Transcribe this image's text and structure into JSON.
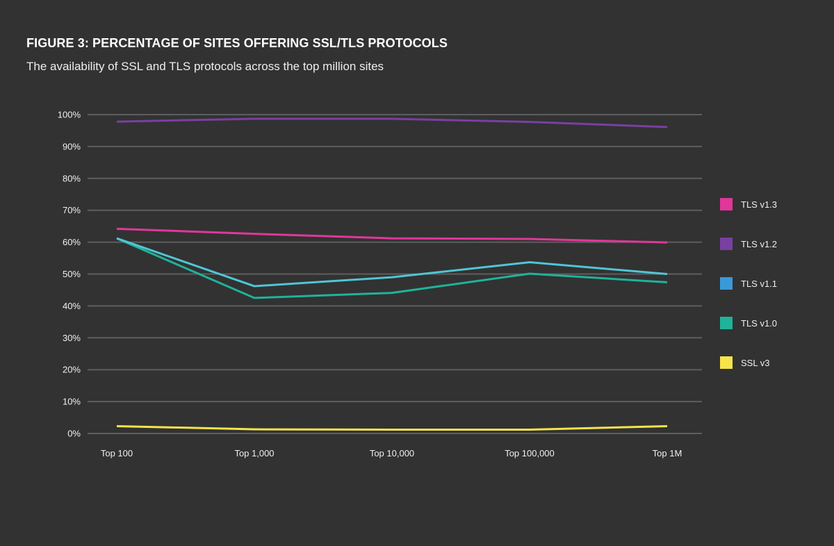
{
  "header": {
    "title": "FIGURE 3: PERCENTAGE OF SITES OFFERING SSL/TLS PROTOCOLS",
    "subtitle": "The availability of SSL and TLS protocols across the top million sites"
  },
  "chart_data": {
    "type": "line",
    "title": "FIGURE 3: PERCENTAGE OF SITES OFFERING SSL/TLS PROTOCOLS",
    "subtitle": "The availability of SSL and TLS protocols across the top million sites",
    "xlabel": "",
    "ylabel": "",
    "categories": [
      "Top 100",
      "Top 1,000",
      "Top 10,000",
      "Top 100,000",
      "Top 1M"
    ],
    "ylim": [
      0,
      100
    ],
    "yticks": [
      0,
      10,
      20,
      30,
      40,
      50,
      60,
      70,
      80,
      90,
      100
    ],
    "ytick_labels": [
      "0%",
      "10%",
      "20%",
      "30%",
      "40%",
      "50%",
      "60%",
      "70%",
      "80%",
      "90%",
      "100%"
    ],
    "grid": true,
    "legend_position": "right",
    "series": [
      {
        "name": "TLS v1.3",
        "color": "#e0379b",
        "legend_color": "#e0379b",
        "values": [
          64.2,
          62.6,
          61.2,
          61.0,
          59.9
        ]
      },
      {
        "name": "TLS v1.2",
        "color": "#7a3fa3",
        "legend_color": "#7a3fa3",
        "values": [
          97.8,
          98.7,
          98.7,
          97.7,
          96.1
        ]
      },
      {
        "name": "TLS v1.1",
        "color": "#4fc6d6",
        "legend_color": "#3a9ad9",
        "values": [
          61.2,
          46.2,
          49.0,
          53.7,
          50.0
        ]
      },
      {
        "name": "TLS v1.0",
        "color": "#1fb39a",
        "legend_color": "#1fb39a",
        "values": [
          61.2,
          42.5,
          44.1,
          50.1,
          47.4
        ]
      },
      {
        "name": "SSL v3",
        "color": "#f5e44a",
        "legend_color": "#f5e44a",
        "values": [
          2.3,
          1.3,
          1.2,
          1.2,
          2.3
        ]
      }
    ]
  }
}
